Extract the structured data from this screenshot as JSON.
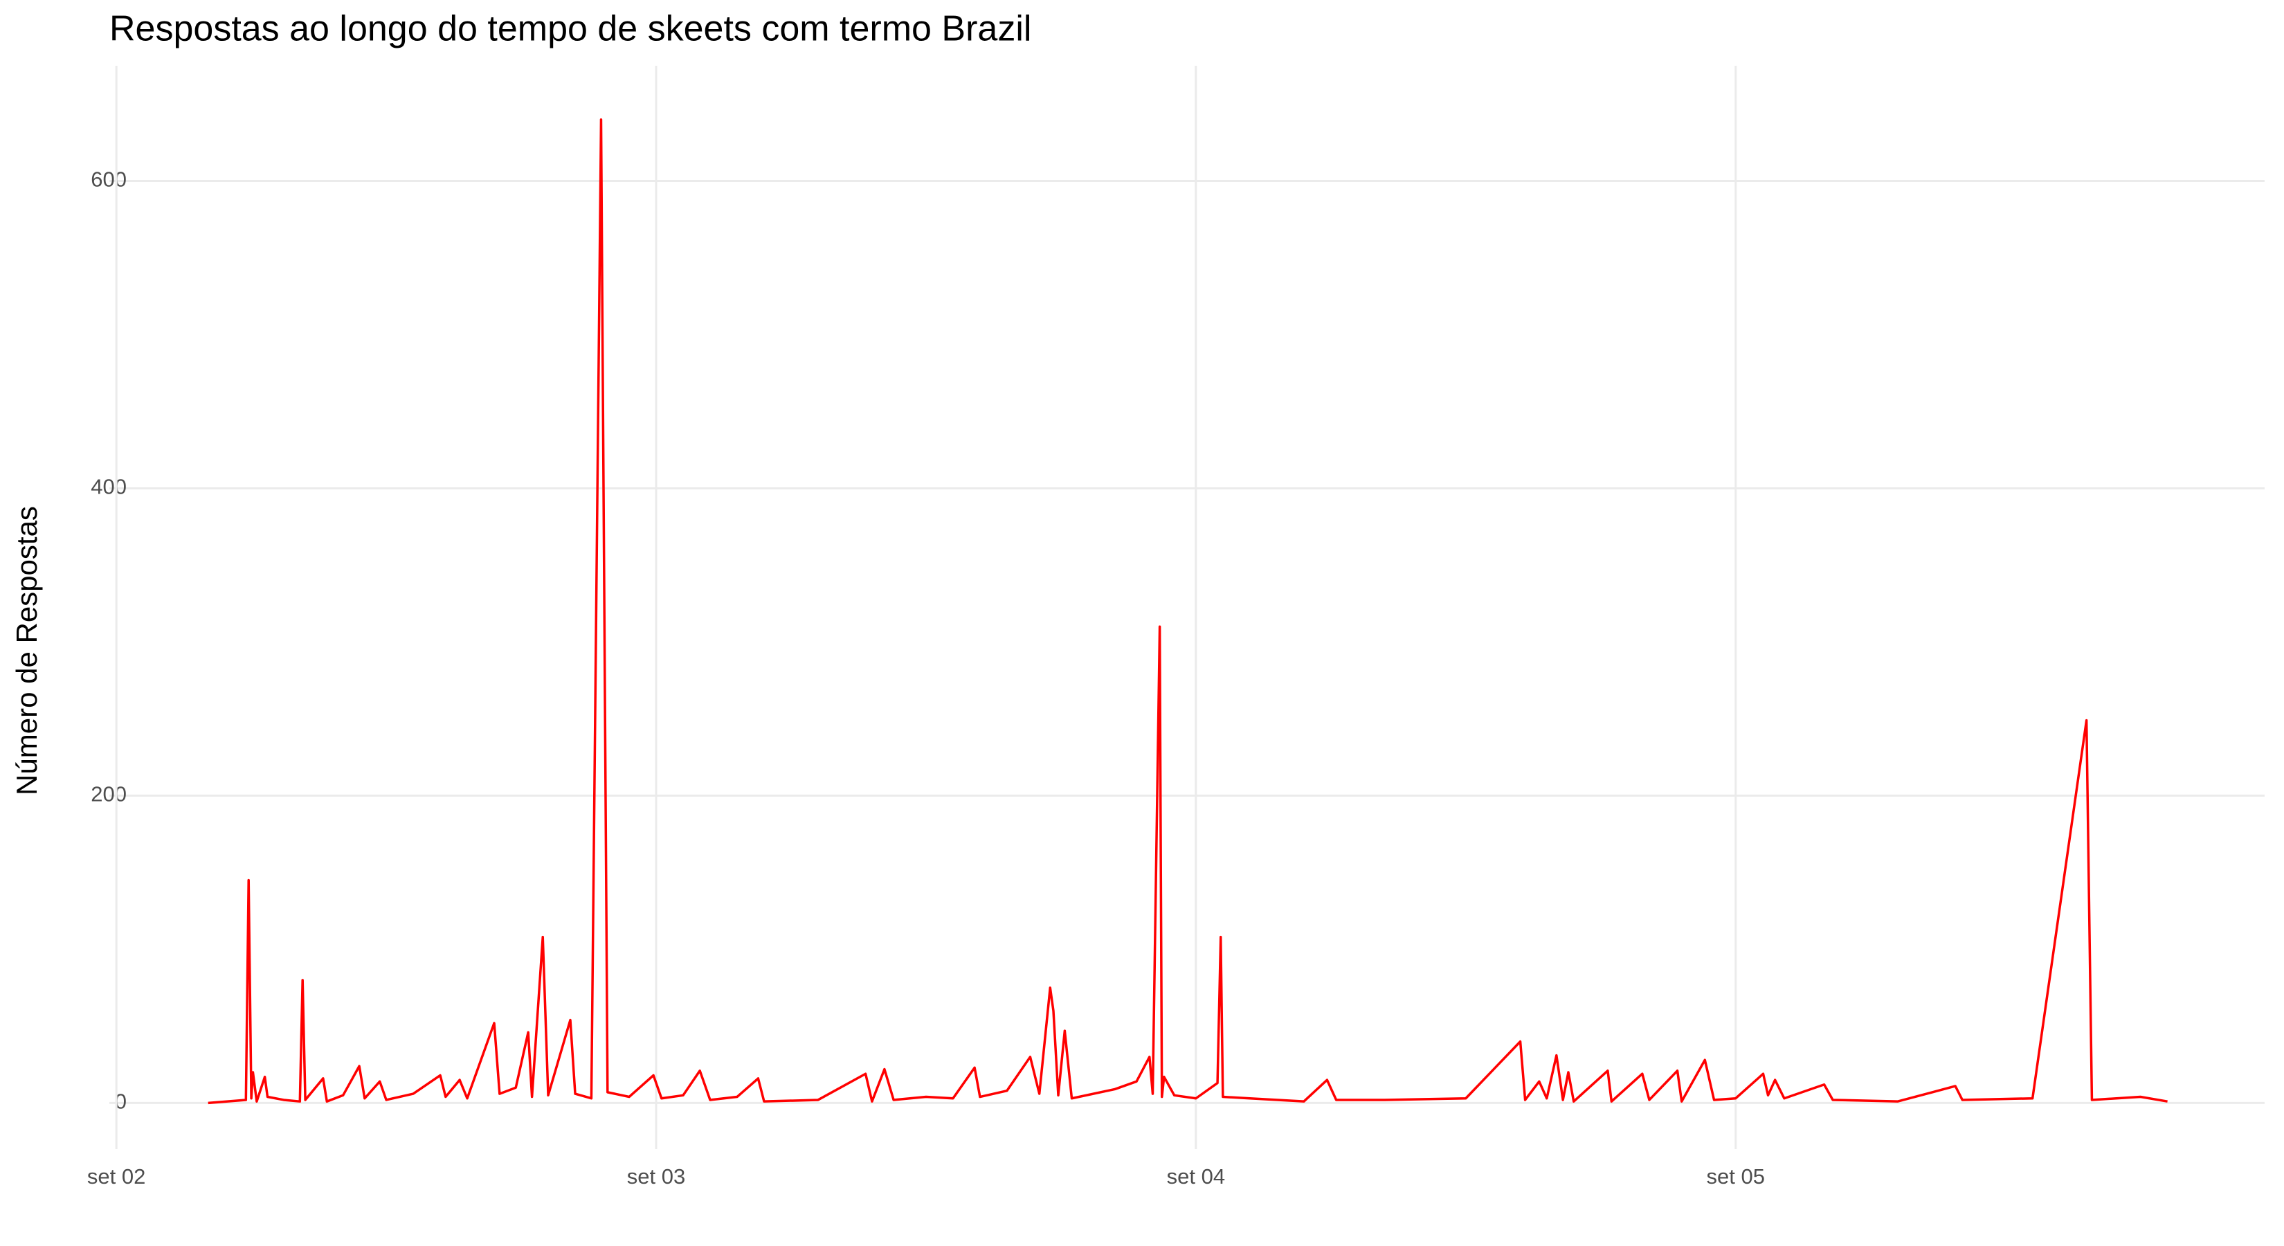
{
  "chart_data": {
    "type": "line",
    "title": "Respostas ao longo do tempo de skeets com termo Brazil",
    "y_label": "Número de Respostas",
    "x": [
      2.17,
      2.24,
      2.245,
      2.25,
      2.253,
      2.26,
      2.275,
      2.28,
      2.31,
      2.34,
      2.345,
      2.35,
      2.383,
      2.39,
      2.42,
      2.45,
      2.46,
      2.488,
      2.5,
      2.55,
      2.6,
      2.61,
      2.636,
      2.65,
      2.7,
      2.71,
      2.74,
      2.763,
      2.77,
      2.79,
      2.8,
      2.841,
      2.85,
      2.88,
      2.898,
      2.91,
      2.95,
      2.995,
      3.01,
      3.05,
      3.081,
      3.1,
      3.15,
      3.189,
      3.2,
      3.3,
      3.388,
      3.4,
      3.423,
      3.44,
      3.5,
      3.55,
      3.59,
      3.6,
      3.65,
      3.693,
      3.71,
      3.73,
      3.736,
      3.745,
      3.757,
      3.77,
      3.85,
      3.89,
      3.914,
      3.92,
      3.933,
      3.937,
      3.941,
      3.96,
      4,
      4.04,
      4.046,
      4.05,
      4.1,
      4.2,
      4.243,
      4.26,
      4.35,
      4.5,
      4.601,
      4.61,
      4.636,
      4.65,
      4.668,
      4.68,
      4.69,
      4.7,
      4.763,
      4.77,
      4.827,
      4.84,
      4.892,
      4.9,
      4.943,
      4.96,
      5,
      5.051,
      5.06,
      5.073,
      5.09,
      5.164,
      5.18,
      5.3,
      5.407,
      5.42,
      5.55,
      5.65,
      5.66,
      5.75,
      5.8
    ],
    "series": [
      {
        "name": "Respostas",
        "color": "#ff0000",
        "values": [
          0,
          2,
          145,
          3,
          20,
          1,
          17,
          4,
          2,
          1,
          80,
          2,
          16,
          1,
          5,
          24,
          3,
          14,
          2,
          6,
          18,
          4,
          15,
          3,
          52,
          6,
          10,
          46,
          4,
          108,
          5,
          54,
          6,
          3,
          640,
          7,
          4,
          18,
          3,
          5,
          21,
          2,
          4,
          16,
          1,
          2,
          19,
          1,
          22,
          2,
          4,
          3,
          23,
          4,
          8,
          30,
          6,
          75,
          60,
          5,
          47,
          3,
          9,
          14,
          30,
          6,
          310,
          4,
          17,
          5,
          3,
          13,
          108,
          4,
          3,
          1,
          15,
          2,
          2,
          3,
          40,
          2,
          14,
          3,
          31,
          2,
          20,
          1,
          21,
          1,
          19,
          2,
          21,
          1,
          28,
          2,
          3,
          19,
          5,
          15,
          3,
          12,
          2,
          1,
          11,
          2,
          3,
          249,
          2,
          4,
          1
        ]
      }
    ],
    "xlim": [
      1.987,
      5.98
    ],
    "xticks": [
      {
        "value": 2,
        "label": "set 02"
      },
      {
        "value": 3,
        "label": "set 03"
      },
      {
        "value": 4,
        "label": "set 04"
      },
      {
        "value": 5,
        "label": "set 05"
      }
    ],
    "ylim": [
      -30,
      675
    ],
    "yticks": [
      0,
      200,
      400,
      600
    ],
    "grid": true
  }
}
